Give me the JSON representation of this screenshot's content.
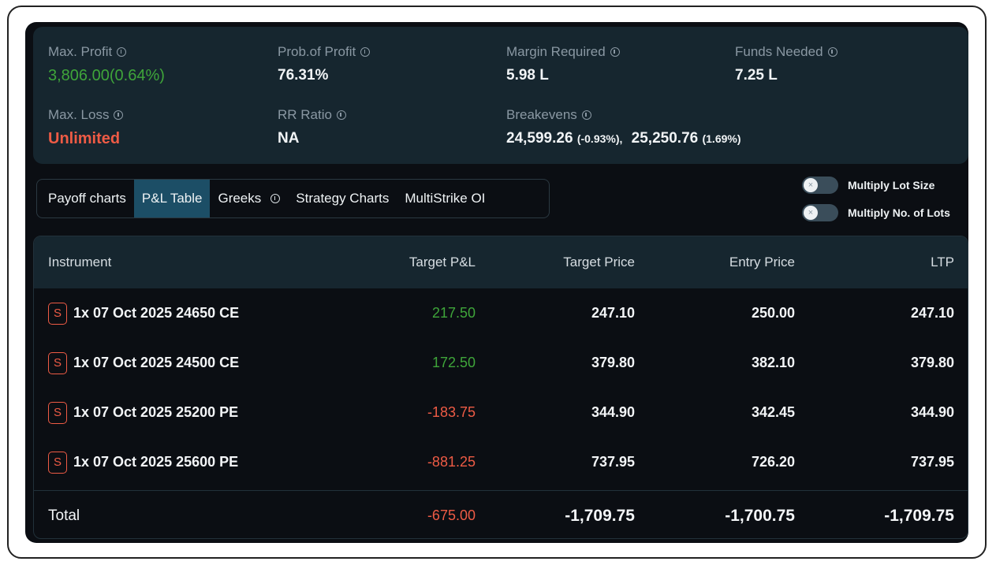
{
  "summary": {
    "max_profit": {
      "label": "Max. Profit",
      "value": "3,806.00(0.64%)"
    },
    "prob_of_profit": {
      "label": "Prob.of Profit",
      "value": "76.31%"
    },
    "margin_required": {
      "label": "Margin Required",
      "value": "5.98 L"
    },
    "funds_needed": {
      "label": "Funds Needed",
      "value": "7.25 L"
    },
    "max_loss": {
      "label": "Max. Loss",
      "value": "Unlimited"
    },
    "rr_ratio": {
      "label": "RR Ratio",
      "value": "NA"
    },
    "breakevens": {
      "label": "Breakevens",
      "points": [
        {
          "value": "24,599.26",
          "pct": "(-0.93%),"
        },
        {
          "value": "25,250.76",
          "pct": "(1.69%)"
        }
      ]
    }
  },
  "tabs": [
    {
      "label": "Payoff charts"
    },
    {
      "label": "P&L Table"
    },
    {
      "label": "Greeks"
    },
    {
      "label": "Strategy Charts"
    },
    {
      "label": "MultiStrike OI"
    }
  ],
  "toggles": {
    "multiply_lot_size": {
      "label": "Multiply Lot Size"
    },
    "multiply_no_of_lots": {
      "label": "Multiply No. of Lots"
    }
  },
  "table": {
    "headers": [
      "Instrument",
      "Target P&L",
      "Target Price",
      "Entry Price",
      "LTP"
    ],
    "rows": [
      {
        "side": "S",
        "instrument": "1x 07 Oct 2025 24650 CE",
        "target_pnl": "217.50",
        "target_price": "247.10",
        "entry_price": "250.00",
        "ltp": "247.10"
      },
      {
        "side": "S",
        "instrument": "1x 07 Oct 2025 24500 CE",
        "target_pnl": "172.50",
        "target_price": "379.80",
        "entry_price": "382.10",
        "ltp": "379.80"
      },
      {
        "side": "S",
        "instrument": "1x 07 Oct 2025 25200 PE",
        "target_pnl": "-183.75",
        "target_price": "344.90",
        "entry_price": "342.45",
        "ltp": "344.90"
      },
      {
        "side": "S",
        "instrument": "1x 07 Oct 2025 25600 PE",
        "target_pnl": "-881.25",
        "target_price": "737.95",
        "entry_price": "726.20",
        "ltp": "737.95"
      }
    ],
    "total": {
      "label": "Total",
      "target_pnl": "-675.00",
      "target_price": "-1,709.75",
      "entry_price": "-1,700.75",
      "ltp": "-1,709.75"
    }
  },
  "colors": {
    "profit": "#3fa53a",
    "loss": "#ee5b45",
    "active_tab": "#1c4e66"
  }
}
